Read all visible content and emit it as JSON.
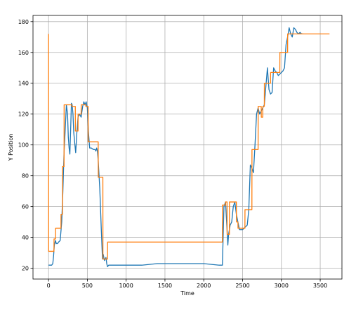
{
  "chart_data": {
    "type": "line",
    "title": "",
    "xlabel": "Time",
    "ylabel": "Y Position",
    "xlim": [
      -200,
      3780
    ],
    "ylim": [
      13,
      184
    ],
    "grid": true,
    "xticks": [
      0,
      500,
      1000,
      1500,
      2000,
      2500,
      3000,
      3500
    ],
    "yticks": [
      20,
      40,
      60,
      80,
      100,
      120,
      140,
      160,
      180
    ],
    "colors": {
      "series_1": "#1f77b4",
      "series_2": "#ff7f0e",
      "grid": "#b0b0b0"
    },
    "series": [
      {
        "points": [
          [
            0,
            22
          ],
          [
            40,
            22
          ],
          [
            55,
            23
          ],
          [
            65,
            28
          ],
          [
            75,
            35
          ],
          [
            90,
            38
          ],
          [
            100,
            36
          ],
          [
            115,
            36
          ],
          [
            130,
            37
          ],
          [
            150,
            38
          ],
          [
            170,
            50
          ],
          [
            185,
            70
          ],
          [
            200,
            95
          ],
          [
            215,
            110
          ],
          [
            230,
            126
          ],
          [
            245,
            120
          ],
          [
            255,
            105
          ],
          [
            265,
            98
          ],
          [
            275,
            94
          ],
          [
            285,
            110
          ],
          [
            295,
            127
          ],
          [
            305,
            126
          ],
          [
            315,
            120
          ],
          [
            325,
            108
          ],
          [
            340,
            100
          ],
          [
            350,
            95
          ],
          [
            365,
            108
          ],
          [
            380,
            118
          ],
          [
            400,
            120
          ],
          [
            420,
            118
          ],
          [
            440,
            125
          ],
          [
            455,
            128
          ],
          [
            470,
            126
          ],
          [
            485,
            128
          ],
          [
            500,
            124
          ],
          [
            515,
            108
          ],
          [
            530,
            98
          ],
          [
            550,
            98
          ],
          [
            580,
            97
          ],
          [
            600,
            97
          ],
          [
            610,
            96
          ],
          [
            620,
            98
          ],
          [
            630,
            96
          ],
          [
            640,
            90
          ],
          [
            660,
            72
          ],
          [
            680,
            45
          ],
          [
            695,
            26
          ],
          [
            705,
            29
          ],
          [
            720,
            25
          ],
          [
            740,
            27
          ],
          [
            750,
            23
          ],
          [
            760,
            21
          ],
          [
            775,
            22
          ],
          [
            800,
            22
          ],
          [
            1000,
            22
          ],
          [
            1200,
            22
          ],
          [
            1400,
            23
          ],
          [
            1500,
            23
          ],
          [
            1800,
            23
          ],
          [
            2000,
            23
          ],
          [
            2200,
            22
          ],
          [
            2240,
            22
          ],
          [
            2260,
            60
          ],
          [
            2280,
            63
          ],
          [
            2300,
            45
          ],
          [
            2310,
            35
          ],
          [
            2320,
            42
          ],
          [
            2340,
            48
          ],
          [
            2360,
            50
          ],
          [
            2380,
            60
          ],
          [
            2400,
            63
          ],
          [
            2420,
            55
          ],
          [
            2440,
            50
          ],
          [
            2460,
            45
          ],
          [
            2500,
            45
          ],
          [
            2520,
            46
          ],
          [
            2540,
            47
          ],
          [
            2560,
            48
          ],
          [
            2580,
            58
          ],
          [
            2600,
            87
          ],
          [
            2620,
            85
          ],
          [
            2640,
            82
          ],
          [
            2660,
            100
          ],
          [
            2680,
            120
          ],
          [
            2700,
            124
          ],
          [
            2720,
            120
          ],
          [
            2740,
            122
          ],
          [
            2760,
            124
          ],
          [
            2780,
            126
          ],
          [
            2800,
            138
          ],
          [
            2820,
            150
          ],
          [
            2840,
            136
          ],
          [
            2860,
            133
          ],
          [
            2880,
            134
          ],
          [
            2900,
            150
          ],
          [
            2920,
            148
          ],
          [
            2940,
            147
          ],
          [
            2960,
            145
          ],
          [
            2980,
            146
          ],
          [
            3000,
            147
          ],
          [
            3020,
            148
          ],
          [
            3040,
            150
          ],
          [
            3060,
            165
          ],
          [
            3080,
            170
          ],
          [
            3100,
            176
          ],
          [
            3120,
            172
          ],
          [
            3140,
            170
          ],
          [
            3160,
            176
          ],
          [
            3180,
            175
          ],
          [
            3200,
            173
          ],
          [
            3220,
            172
          ],
          [
            3240,
            173
          ],
          [
            3260,
            172
          ],
          [
            3280,
            172
          ]
        ]
      },
      {
        "points": [
          [
            0,
            172
          ],
          [
            1,
            31
          ],
          [
            70,
            31
          ],
          [
            71,
            39
          ],
          [
            90,
            39
          ],
          [
            91,
            46
          ],
          [
            160,
            46
          ],
          [
            161,
            55
          ],
          [
            180,
            55
          ],
          [
            181,
            86
          ],
          [
            200,
            86
          ],
          [
            201,
            126
          ],
          [
            300,
            126
          ],
          [
            301,
            125
          ],
          [
            345,
            125
          ],
          [
            346,
            109
          ],
          [
            380,
            109
          ],
          [
            381,
            120
          ],
          [
            420,
            120
          ],
          [
            421,
            126
          ],
          [
            480,
            126
          ],
          [
            481,
            125
          ],
          [
            510,
            125
          ],
          [
            511,
            102
          ],
          [
            640,
            102
          ],
          [
            641,
            79
          ],
          [
            700,
            79
          ],
          [
            701,
            26
          ],
          [
            760,
            26
          ],
          [
            761,
            37
          ],
          [
            2240,
            37
          ],
          [
            2241,
            61
          ],
          [
            2280,
            61
          ],
          [
            2281,
            63
          ],
          [
            2300,
            63
          ],
          [
            2301,
            42
          ],
          [
            2330,
            42
          ],
          [
            2331,
            63
          ],
          [
            2420,
            63
          ],
          [
            2421,
            50
          ],
          [
            2440,
            50
          ],
          [
            2441,
            46
          ],
          [
            2500,
            46
          ],
          [
            2501,
            46
          ],
          [
            2530,
            46
          ],
          [
            2531,
            58
          ],
          [
            2620,
            58
          ],
          [
            2621,
            97
          ],
          [
            2700,
            97
          ],
          [
            2701,
            125
          ],
          [
            2740,
            125
          ],
          [
            2741,
            118
          ],
          [
            2760,
            118
          ],
          [
            2761,
            125
          ],
          [
            2780,
            125
          ],
          [
            2781,
            140
          ],
          [
            2860,
            140
          ],
          [
            2861,
            147
          ],
          [
            2900,
            147
          ],
          [
            2901,
            147
          ],
          [
            2980,
            147
          ],
          [
            2981,
            160
          ],
          [
            3080,
            160
          ],
          [
            3081,
            172
          ],
          [
            3620,
            172
          ]
        ]
      }
    ]
  }
}
